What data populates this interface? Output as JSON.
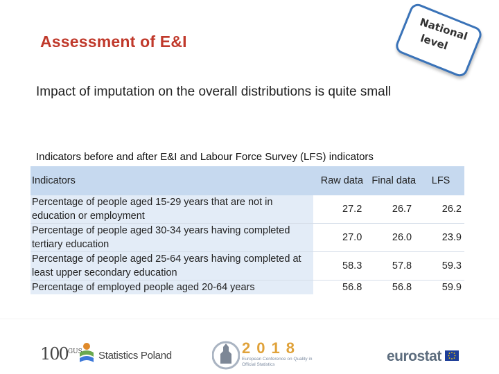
{
  "slide": {
    "title": "Assessment of E&I",
    "stamp": {
      "line1": "National",
      "line2": "level"
    },
    "subtitle": "Impact of imputation on the overall distributions is quite small",
    "caption": "Indicators before and after E&I and Labour Force Survey (LFS) indicators"
  },
  "table": {
    "headers": {
      "indicator": "Indicators",
      "raw": "Raw data",
      "final": "Final data",
      "lfs": "LFS"
    },
    "rows": [
      {
        "indicator": "Percentage of people aged 15-29 years that are not in education or employment",
        "raw": "27.2",
        "final": "26.7",
        "lfs": "26.2"
      },
      {
        "indicator": "Percentage of people aged 30-34 years having completed tertiary education",
        "raw": "27.0",
        "final": "26.0",
        "lfs": "23.9"
      },
      {
        "indicator": "Percentage of people aged 25-64 years having completed at least upper secondary education",
        "raw": "58.3",
        "final": "57.8",
        "lfs": "59.3"
      },
      {
        "indicator": "Percentage of employed people aged 20-64 years",
        "raw": "56.8",
        "final": "56.8",
        "lfs": "59.9"
      }
    ]
  },
  "footer": {
    "logo_100": "100",
    "logo_100_sub": "GUS",
    "statistics_poland": "Statistics Poland",
    "conference_year": "2018",
    "conference_text": "European Conference on Quality in Official Statistics",
    "eurostat": "eurostat"
  },
  "colors": {
    "title": "#c0392b",
    "stamp_border": "#3a73b8",
    "table_header": "#c6d9ef",
    "conference_accent": "#e0a23a",
    "eu_blue": "#1f3f99"
  }
}
